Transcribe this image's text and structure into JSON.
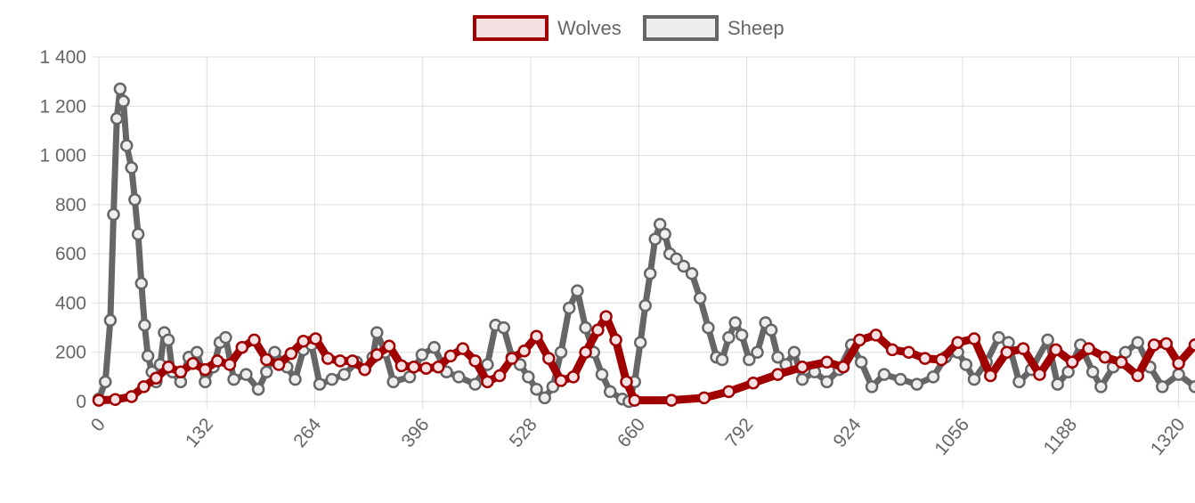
{
  "chart_data": {
    "type": "line",
    "title": "",
    "xlabel": "",
    "ylabel": "",
    "xlim": [
      0,
      1340
    ],
    "ylim": [
      0,
      1400
    ],
    "x_ticks": [
      0,
      132,
      264,
      396,
      528,
      660,
      792,
      924,
      1056,
      1188,
      1320
    ],
    "x_tick_labels": [
      "0",
      "132",
      "264",
      "396",
      "528",
      "660",
      "792",
      "924",
      "1056",
      "1188",
      "1320"
    ],
    "y_ticks": [
      0,
      200,
      400,
      600,
      800,
      1000,
      1200,
      1400
    ],
    "y_tick_labels": [
      "0",
      "200",
      "400",
      "600",
      "800",
      "1 000",
      "1 200",
      "1 400"
    ],
    "grid": true,
    "legend_position": "top",
    "series": [
      {
        "name": "Wolves",
        "color": "#a00000",
        "fill": "#f5e1e3",
        "points": [
          [
            0,
            5
          ],
          [
            20,
            8
          ],
          [
            40,
            20
          ],
          [
            55,
            60
          ],
          [
            70,
            95
          ],
          [
            85,
            140
          ],
          [
            100,
            120
          ],
          [
            115,
            155
          ],
          [
            130,
            130
          ],
          [
            145,
            165
          ],
          [
            160,
            150
          ],
          [
            175,
            220
          ],
          [
            190,
            250
          ],
          [
            205,
            170
          ],
          [
            220,
            150
          ],
          [
            235,
            195
          ],
          [
            250,
            245
          ],
          [
            265,
            255
          ],
          [
            280,
            175
          ],
          [
            295,
            165
          ],
          [
            310,
            165
          ],
          [
            325,
            130
          ],
          [
            340,
            190
          ],
          [
            355,
            225
          ],
          [
            370,
            145
          ],
          [
            385,
            140
          ],
          [
            400,
            135
          ],
          [
            415,
            140
          ],
          [
            430,
            185
          ],
          [
            445,
            215
          ],
          [
            460,
            165
          ],
          [
            475,
            80
          ],
          [
            490,
            105
          ],
          [
            505,
            175
          ],
          [
            520,
            205
          ],
          [
            535,
            265
          ],
          [
            550,
            175
          ],
          [
            565,
            85
          ],
          [
            580,
            100
          ],
          [
            595,
            200
          ],
          [
            610,
            290
          ],
          [
            620,
            345
          ],
          [
            632,
            250
          ],
          [
            645,
            80
          ],
          [
            655,
            5
          ],
          [
            700,
            5
          ],
          [
            740,
            15
          ],
          [
            770,
            40
          ],
          [
            800,
            75
          ],
          [
            830,
            110
          ],
          [
            860,
            140
          ],
          [
            890,
            160
          ],
          [
            910,
            140
          ],
          [
            930,
            250
          ],
          [
            950,
            270
          ],
          [
            970,
            210
          ],
          [
            990,
            200
          ],
          [
            1010,
            175
          ],
          [
            1030,
            170
          ],
          [
            1050,
            240
          ],
          [
            1070,
            255
          ],
          [
            1090,
            105
          ],
          [
            1110,
            200
          ],
          [
            1130,
            215
          ],
          [
            1150,
            110
          ],
          [
            1170,
            210
          ],
          [
            1190,
            160
          ],
          [
            1210,
            215
          ],
          [
            1230,
            180
          ],
          [
            1250,
            160
          ],
          [
            1270,
            105
          ],
          [
            1290,
            230
          ],
          [
            1305,
            235
          ],
          [
            1320,
            155
          ],
          [
            1340,
            230
          ]
        ]
      },
      {
        "name": "Sheep",
        "color": "#666666",
        "fill": "#eeeeee",
        "points": [
          [
            0,
            10
          ],
          [
            8,
            80
          ],
          [
            14,
            330
          ],
          [
            18,
            760
          ],
          [
            22,
            1150
          ],
          [
            26,
            1270
          ],
          [
            30,
            1220
          ],
          [
            34,
            1040
          ],
          [
            40,
            950
          ],
          [
            44,
            820
          ],
          [
            48,
            680
          ],
          [
            52,
            480
          ],
          [
            56,
            310
          ],
          [
            60,
            185
          ],
          [
            65,
            120
          ],
          [
            70,
            80
          ],
          [
            75,
            150
          ],
          [
            80,
            280
          ],
          [
            85,
            250
          ],
          [
            90,
            120
          ],
          [
            100,
            80
          ],
          [
            110,
            180
          ],
          [
            120,
            200
          ],
          [
            130,
            80
          ],
          [
            140,
            140
          ],
          [
            148,
            240
          ],
          [
            155,
            260
          ],
          [
            165,
            90
          ],
          [
            180,
            110
          ],
          [
            195,
            50
          ],
          [
            205,
            120
          ],
          [
            215,
            200
          ],
          [
            230,
            140
          ],
          [
            240,
            90
          ],
          [
            250,
            210
          ],
          [
            260,
            230
          ],
          [
            270,
            70
          ],
          [
            285,
            90
          ],
          [
            300,
            110
          ],
          [
            315,
            160
          ],
          [
            325,
            130
          ],
          [
            335,
            180
          ],
          [
            340,
            280
          ],
          [
            350,
            200
          ],
          [
            360,
            80
          ],
          [
            380,
            100
          ],
          [
            395,
            190
          ],
          [
            410,
            220
          ],
          [
            425,
            120
          ],
          [
            440,
            100
          ],
          [
            460,
            70
          ],
          [
            475,
            150
          ],
          [
            485,
            310
          ],
          [
            495,
            300
          ],
          [
            505,
            180
          ],
          [
            515,
            150
          ],
          [
            525,
            100
          ],
          [
            535,
            50
          ],
          [
            545,
            15
          ],
          [
            555,
            60
          ],
          [
            565,
            200
          ],
          [
            575,
            380
          ],
          [
            585,
            450
          ],
          [
            595,
            300
          ],
          [
            605,
            200
          ],
          [
            615,
            110
          ],
          [
            625,
            40
          ],
          [
            640,
            10
          ],
          [
            648,
            0
          ],
          [
            655,
            80
          ],
          [
            662,
            240
          ],
          [
            668,
            390
          ],
          [
            674,
            520
          ],
          [
            680,
            660
          ],
          [
            686,
            720
          ],
          [
            692,
            680
          ],
          [
            698,
            600
          ],
          [
            706,
            580
          ],
          [
            715,
            550
          ],
          [
            725,
            520
          ],
          [
            735,
            420
          ],
          [
            745,
            300
          ],
          [
            755,
            180
          ],
          [
            762,
            170
          ],
          [
            770,
            260
          ],
          [
            778,
            320
          ],
          [
            786,
            270
          ],
          [
            795,
            170
          ],
          [
            805,
            200
          ],
          [
            815,
            320
          ],
          [
            822,
            290
          ],
          [
            830,
            180
          ],
          [
            840,
            150
          ],
          [
            850,
            200
          ],
          [
            860,
            90
          ],
          [
            875,
            120
          ],
          [
            890,
            80
          ],
          [
            905,
            130
          ],
          [
            920,
            230
          ],
          [
            932,
            160
          ],
          [
            945,
            60
          ],
          [
            960,
            110
          ],
          [
            980,
            90
          ],
          [
            1000,
            70
          ],
          [
            1020,
            100
          ],
          [
            1035,
            180
          ],
          [
            1050,
            200
          ],
          [
            1060,
            150
          ],
          [
            1070,
            90
          ],
          [
            1085,
            160
          ],
          [
            1100,
            260
          ],
          [
            1112,
            240
          ],
          [
            1125,
            80
          ],
          [
            1140,
            130
          ],
          [
            1160,
            250
          ],
          [
            1172,
            70
          ],
          [
            1185,
            120
          ],
          [
            1200,
            230
          ],
          [
            1215,
            120
          ],
          [
            1225,
            60
          ],
          [
            1240,
            140
          ],
          [
            1255,
            200
          ],
          [
            1270,
            240
          ],
          [
            1285,
            140
          ],
          [
            1300,
            60
          ],
          [
            1320,
            110
          ],
          [
            1340,
            60
          ]
        ]
      }
    ]
  }
}
